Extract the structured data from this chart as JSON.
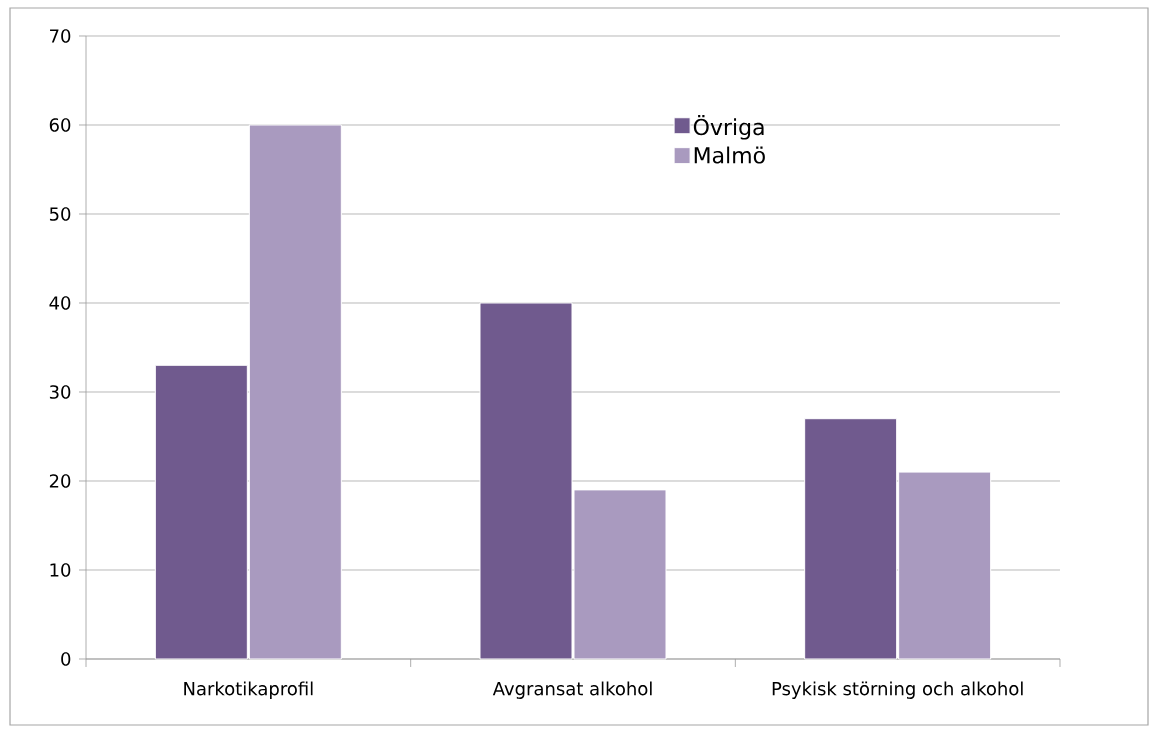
{
  "chart_data": {
    "type": "bar",
    "categories": [
      "Narkotikaprofil",
      "Avgransat alkohol",
      "Psykisk störning och alkohol"
    ],
    "series": [
      {
        "name": "Övriga",
        "color": "#705a8e",
        "values": [
          33,
          40,
          27
        ]
      },
      {
        "name": "Malmö",
        "color": "#a99abf",
        "values": [
          60,
          19,
          21
        ]
      }
    ],
    "ylim": [
      0,
      70
    ],
    "yticks": [
      0,
      10,
      20,
      30,
      40,
      50,
      60,
      70
    ],
    "grid": "y",
    "legend": "top right"
  }
}
